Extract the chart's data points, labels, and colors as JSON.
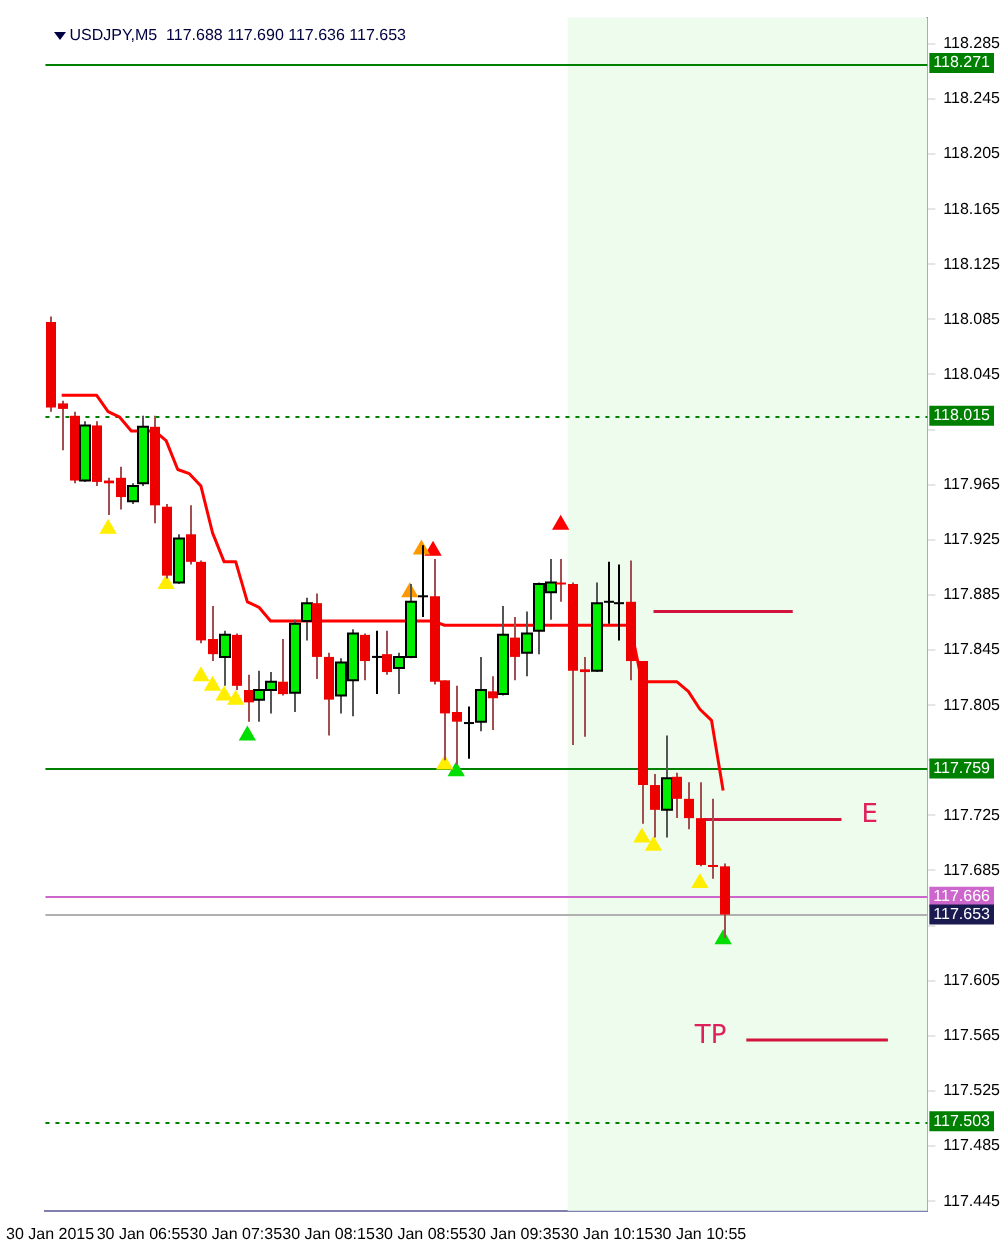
{
  "chart_data": {
    "type": "candlestick",
    "title": "USDJPY,M5  117.688 117.690 117.636 117.653",
    "x": [
      "2015-01-30T06:15",
      "2015-01-30T06:20",
      "2015-01-30T06:25",
      "2015-01-30T06:30",
      "2015-01-30T06:35",
      "2015-01-30T06:40",
      "2015-01-30T06:45",
      "2015-01-30T06:50",
      "2015-01-30T06:55",
      "2015-01-30T07:00",
      "2015-01-30T07:05",
      "2015-01-30T07:10",
      "2015-01-30T07:15",
      "2015-01-30T07:20",
      "2015-01-30T07:25",
      "2015-01-30T07:30",
      "2015-01-30T07:35",
      "2015-01-30T07:40",
      "2015-01-30T07:45",
      "2015-01-30T07:50",
      "2015-01-30T07:55",
      "2015-01-30T08:00",
      "2015-01-30T08:05",
      "2015-01-30T08:10",
      "2015-01-30T08:15",
      "2015-01-30T08:20",
      "2015-01-30T08:25",
      "2015-01-30T08:30",
      "2015-01-30T08:35",
      "2015-01-30T08:40",
      "2015-01-30T08:45",
      "2015-01-30T08:50",
      "2015-01-30T08:55",
      "2015-01-30T09:00",
      "2015-01-30T09:05",
      "2015-01-30T09:10",
      "2015-01-30T09:15",
      "2015-01-30T09:20",
      "2015-01-30T09:25",
      "2015-01-30T09:30",
      "2015-01-30T09:35",
      "2015-01-30T09:40",
      "2015-01-30T09:45",
      "2015-01-30T09:50",
      "2015-01-30T09:55",
      "2015-01-30T10:00",
      "2015-01-30T10:05",
      "2015-01-30T10:10",
      "2015-01-30T10:15",
      "2015-01-30T10:20",
      "2015-01-30T10:25",
      "2015-01-30T10:30",
      "2015-01-30T10:35",
      "2015-01-30T10:40",
      "2015-01-30T10:45",
      "2015-01-30T10:50",
      "2015-01-30T10:55",
      "2015-01-30T11:00",
      "2015-01-30T11:05"
    ],
    "ohlc": [
      [
        118.083,
        118.087,
        118.018,
        118.021
      ],
      [
        118.024,
        118.026,
        117.99,
        118.02
      ],
      [
        118.015,
        118.018,
        117.966,
        117.968
      ],
      [
        117.968,
        118.011,
        117.967,
        118.008
      ],
      [
        118.008,
        118.011,
        117.964,
        117.967
      ],
      [
        117.968,
        117.97,
        117.943,
        117.966
      ],
      [
        117.97,
        117.978,
        117.947,
        117.956
      ],
      [
        117.953,
        117.966,
        117.951,
        117.964
      ],
      [
        117.966,
        118.015,
        117.964,
        118.007
      ],
      [
        118.007,
        118.015,
        117.937,
        117.95
      ],
      [
        117.949,
        117.951,
        117.897,
        117.899
      ],
      [
        117.894,
        117.929,
        117.893,
        117.926
      ],
      [
        117.929,
        117.95,
        117.907,
        117.909
      ],
      [
        117.909,
        117.91,
        117.85,
        117.852
      ],
      [
        117.853,
        117.877,
        117.837,
        117.842
      ],
      [
        117.84,
        117.859,
        117.819,
        117.856
      ],
      [
        117.856,
        117.857,
        117.816,
        117.819
      ],
      [
        117.816,
        117.827,
        117.793,
        117.807
      ],
      [
        117.809,
        117.83,
        117.793,
        117.816
      ],
      [
        117.816,
        117.829,
        117.799,
        117.822
      ],
      [
        117.822,
        117.853,
        117.812,
        117.813
      ],
      [
        117.814,
        117.867,
        117.8,
        117.864
      ],
      [
        117.866,
        117.883,
        117.852,
        117.879
      ],
      [
        117.879,
        117.886,
        117.824,
        117.84
      ],
      [
        117.84,
        117.843,
        117.783,
        117.809
      ],
      [
        117.812,
        117.839,
        117.799,
        117.836
      ],
      [
        117.823,
        117.86,
        117.797,
        117.857
      ],
      [
        117.856,
        117.857,
        117.823,
        117.837
      ],
      [
        117.84,
        117.859,
        117.813,
        117.84
      ],
      [
        117.842,
        117.859,
        117.827,
        117.829
      ],
      [
        117.832,
        117.843,
        117.813,
        117.84
      ],
      [
        117.84,
        117.893,
        117.839,
        117.88
      ],
      [
        117.884,
        117.921,
        117.869,
        117.884
      ],
      [
        117.884,
        117.911,
        117.82,
        117.822
      ],
      [
        117.823,
        117.823,
        117.765,
        117.799
      ],
      [
        117.8,
        117.819,
        117.762,
        117.793
      ],
      [
        117.792,
        117.804,
        117.766,
        117.792
      ],
      [
        117.793,
        117.84,
        117.786,
        117.816
      ],
      [
        117.815,
        117.826,
        117.787,
        117.81
      ],
      [
        117.813,
        117.877,
        117.812,
        117.856
      ],
      [
        117.854,
        117.869,
        117.823,
        117.84
      ],
      [
        117.843,
        117.873,
        117.826,
        117.857
      ],
      [
        117.859,
        117.894,
        117.842,
        117.893
      ],
      [
        117.887,
        117.911,
        117.867,
        117.894
      ],
      [
        117.894,
        117.911,
        117.88,
        117.893
      ],
      [
        117.893,
        117.894,
        117.776,
        117.83
      ],
      [
        117.831,
        117.84,
        117.782,
        117.829
      ],
      [
        117.83,
        117.894,
        117.829,
        117.879
      ],
      [
        117.88,
        117.909,
        117.864,
        117.88
      ],
      [
        117.879,
        117.907,
        117.852,
        117.879
      ],
      [
        117.88,
        117.91,
        117.823,
        117.837
      ],
      [
        117.837,
        117.837,
        117.719,
        117.747
      ],
      [
        117.747,
        117.755,
        117.709,
        117.729
      ],
      [
        117.729,
        117.783,
        117.709,
        117.752
      ],
      [
        117.753,
        117.756,
        117.723,
        117.737
      ],
      [
        117.737,
        117.749,
        117.715,
        117.723
      ],
      [
        117.723,
        117.749,
        117.688,
        117.689
      ],
      [
        117.689,
        117.737,
        117.679,
        117.688
      ],
      [
        117.688,
        117.69,
        117.636,
        117.653
      ]
    ],
    "series": [
      {
        "type": "line",
        "color": "#ff0000",
        "values": [
          null,
          118.03,
          118.03,
          118.03,
          118.03,
          118.018,
          118.014,
          118.004,
          118.004,
          118.004,
          117.997,
          117.976,
          117.973,
          117.964,
          117.93,
          117.909,
          117.909,
          117.88,
          117.876,
          117.866,
          117.866,
          117.866,
          117.866,
          117.866,
          117.866,
          117.866,
          117.866,
          117.866,
          117.866,
          117.866,
          117.866,
          117.866,
          117.866,
          117.866,
          117.863,
          117.863,
          117.863,
          117.863,
          117.863,
          117.863,
          117.863,
          117.863,
          117.863,
          117.863,
          117.863,
          117.863,
          117.863,
          117.863,
          117.863,
          117.863,
          117.863,
          117.822,
          117.822,
          117.822,
          117.822,
          117.815,
          117.802,
          117.794,
          117.743
        ]
      },
      {
        "type": "line",
        "color": "#d2143c",
        "x": [
          "2015-01-30T10:35",
          "2015-01-30T11:35"
        ],
        "values": [
          117.873,
          117.873
        ]
      },
      {
        "type": "line",
        "name": "E",
        "color": "#d2143c",
        "x": [
          "2015-01-30T10:57",
          "2015-01-30T11:56"
        ],
        "values": [
          117.722,
          117.722
        ]
      },
      {
        "type": "line",
        "name": "TP",
        "color": "#d2143c",
        "x": [
          "2015-01-30T11:15",
          "2015-01-30T12:16"
        ],
        "values": [
          117.562,
          117.562
        ]
      },
      {
        "type": "scatter",
        "color": "#ffee00",
        "marker": "triangle",
        "x": [
          "2015-01-30T06:40",
          "2015-01-30T07:05",
          "2015-01-30T07:20",
          "2015-01-30T07:25",
          "2015-01-30T07:30",
          "2015-01-30T07:35",
          "2015-01-30T09:05",
          "2015-01-30T10:30",
          "2015-01-30T10:35",
          "2015-01-30T10:55"
        ],
        "values": [
          117.933,
          117.893,
          117.826,
          117.819,
          117.812,
          117.809,
          117.762,
          117.709,
          117.703,
          117.676
        ]
      },
      {
        "type": "scatter",
        "color": "#00dd00",
        "marker": "triangle",
        "x": [
          "2015-01-30T07:40",
          "2015-01-30T09:10",
          "2015-01-30T11:05"
        ],
        "values": [
          117.783,
          117.757,
          117.635
        ]
      },
      {
        "type": "scatter",
        "color": "#ff9900",
        "marker": "triangle",
        "x": [
          "2015-01-30T08:50",
          "2015-01-30T08:55"
        ],
        "values": [
          117.887,
          117.918
        ]
      },
      {
        "type": "scatter",
        "color": "#ff0000",
        "marker": "triangle",
        "x": [
          "2015-01-30T09:00",
          "2015-01-30T09:55"
        ],
        "values": [
          117.917,
          117.936
        ]
      }
    ],
    "xlim": [
      "2015-01-30T06:13",
      "2015-01-30T12:33"
    ],
    "xticks": [
      {
        "value": "2015-01-30T06:15",
        "label": "30 Jan 2015"
      },
      {
        "value": "2015-01-30T06:55",
        "label": "30 Jan 06:55"
      },
      {
        "value": "2015-01-30T07:35",
        "label": "30 Jan 07:35"
      },
      {
        "value": "2015-01-30T08:15",
        "label": "30 Jan 08:15"
      },
      {
        "value": "2015-01-30T08:55",
        "label": "30 Jan 08:55"
      },
      {
        "value": "2015-01-30T09:35",
        "label": "30 Jan 09:35"
      },
      {
        "value": "2015-01-30T10:15",
        "label": "30 Jan 10:15"
      },
      {
        "value": "2015-01-30T10:55",
        "label": "30 Jan 10:55"
      }
    ],
    "ylim": [
      117.438,
      118.304
    ],
    "yticks": [
      117.445,
      117.485,
      117.525,
      117.565,
      117.605,
      {
        "value": 117.645,
        "label": null
      },
      117.685,
      117.725,
      {
        "value": 117.765,
        "label": null
      },
      117.805,
      117.845,
      117.885,
      117.925,
      117.965,
      {
        "value": 118.005,
        "label": null
      },
      118.045,
      118.085,
      118.125,
      118.165,
      118.205,
      118.245,
      118.285
    ],
    "ref_lines": [
      {
        "axis": "y",
        "value": 118.271,
        "label": "118.271",
        "color": "#008000",
        "line_style": "solid"
      },
      {
        "axis": "y",
        "value": 118.015,
        "label": "118.015",
        "color": "#008000",
        "line_style": "dotted"
      },
      {
        "axis": "y",
        "value": 117.759,
        "label": "117.759",
        "color": "#008000",
        "line_style": "solid"
      },
      {
        "axis": "y",
        "value": 117.666,
        "label": "117.666",
        "color": "#cc66cc",
        "line_style": "solid"
      },
      {
        "axis": "y",
        "value": 117.653,
        "label": "117.653",
        "color": "#b0b0b0",
        "line_style": "solid"
      },
      {
        "axis": "y",
        "value": 117.503,
        "label": "117.503",
        "color": "#008000",
        "line_style": "dotted"
      }
    ],
    "bands": [
      {
        "axis": "x",
        "from": "2015-01-30T09:58",
        "to": "2015-01-30T12:33",
        "color": "#eefcee"
      }
    ],
    "grid": false,
    "legend": false
  }
}
